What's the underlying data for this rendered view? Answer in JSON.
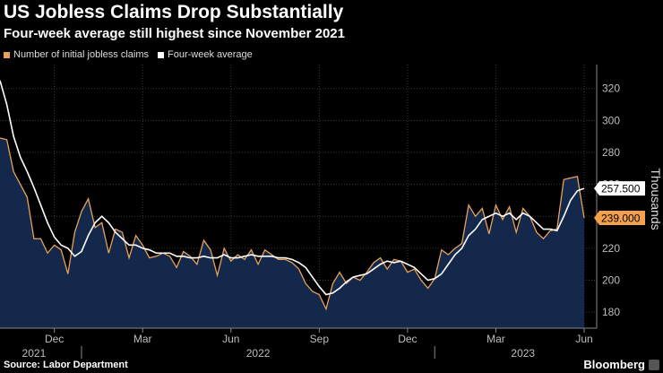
{
  "header": {
    "title": "US Jobless Claims Drop Substantially",
    "subtitle": "Four-week average still highest since November 2021"
  },
  "footer": {
    "source": "Source: Labor Department",
    "brand": "Bloomberg"
  },
  "colors": {
    "claims_line": "#e8a25a",
    "claims_fill": "#13284a",
    "average_line": "#ffffff",
    "claims_label_bg": "#f5a14b",
    "average_label_bg": "#ffffff"
  },
  "chart_data": {
    "type": "area",
    "title": "US Jobless Claims Drop Substantially",
    "subtitle": "Four-week average still highest since November 2021",
    "ylabel": "Thousands",
    "xlabel": "",
    "ylim": [
      170,
      335
    ],
    "yticks": [
      180,
      200,
      220,
      240,
      260,
      280,
      300,
      320
    ],
    "grid": true,
    "x_month_labels": [
      {
        "label": "Dec",
        "index": 8
      },
      {
        "label": "Mar",
        "index": 21
      },
      {
        "label": "Jun",
        "index": 34
      },
      {
        "label": "Sep",
        "index": 47
      },
      {
        "label": "Dec",
        "index": 60
      },
      {
        "label": "Mar",
        "index": 73
      },
      {
        "label": "Jun",
        "index": 86
      }
    ],
    "x_year_labels": [
      {
        "label": "2021",
        "index": 5
      },
      {
        "label": "2022",
        "index": 38
      },
      {
        "label": "2023",
        "index": 77
      }
    ],
    "legend": [
      {
        "name": "Number of initial jobless claims"
      },
      {
        "name": "Four-week average"
      }
    ],
    "series": [
      {
        "name": "Number of initial jobless claims",
        "values": [
          289,
          288,
          268,
          260,
          252,
          226,
          226,
          217,
          222,
          219,
          204,
          230,
          243,
          251,
          233,
          236,
          217,
          232,
          230,
          214,
          228,
          222,
          214,
          215,
          217,
          215,
          208,
          218,
          215,
          210,
          225,
          219,
          203,
          220,
          212,
          216,
          213,
          219,
          210,
          219,
          216,
          213,
          213,
          211,
          207,
          198,
          193,
          191,
          182,
          198,
          205,
          198,
          202,
          200,
          205,
          211,
          214,
          207,
          213,
          212,
          205,
          207,
          200,
          195,
          201,
          219,
          216,
          220,
          223,
          247,
          240,
          245,
          229,
          247,
          238,
          246,
          230,
          245,
          240,
          230,
          226,
          231,
          232,
          263,
          264,
          265,
          239
        ]
      },
      {
        "name": "Four-week average",
        "values": [
          325,
          310,
          290,
          277,
          268,
          258,
          247,
          236,
          227,
          222,
          220,
          215,
          218,
          228,
          236,
          240,
          236,
          230,
          226,
          222,
          222,
          220,
          219,
          217,
          217,
          217,
          215,
          215,
          214,
          214,
          215,
          214,
          214,
          216,
          214,
          214,
          215,
          216,
          215,
          215,
          215,
          214,
          214,
          213,
          211,
          208,
          202,
          196,
          191,
          192,
          195,
          199,
          202,
          203,
          204,
          207,
          210,
          212,
          211,
          212,
          210,
          208,
          204,
          200,
          201,
          204,
          210,
          216,
          220,
          228,
          232,
          238,
          240,
          242,
          240,
          242,
          238,
          242,
          240,
          236,
          232,
          232,
          231,
          240,
          250,
          256,
          257.5
        ]
      }
    ],
    "end_labels": {
      "average": "257.500",
      "claims": "239.000"
    }
  }
}
